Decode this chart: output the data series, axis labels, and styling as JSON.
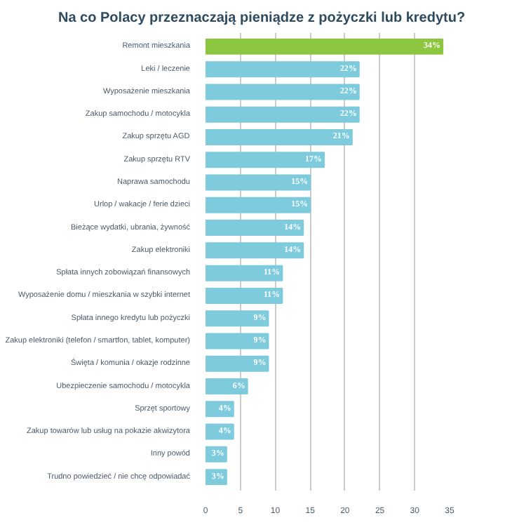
{
  "chart_data": {
    "type": "bar",
    "orientation": "horizontal",
    "title": "Na co Polacy przeznaczają pieniądze z pożyczki lub kredytu?",
    "categories": [
      "Remont mieszkania",
      "Leki / leczenie",
      "Wyposażenie mieszkania",
      "Zakup samochodu / motocykla",
      "Zakup sprzętu AGD",
      "Zakup sprzętu RTV",
      "Naprawa samochodu",
      "Urlop / wakacje / ferie dzieci",
      "Bieżące wydatki, ubrania, żywność",
      "Zakup elektroniki",
      "Spłata innych zobowiązań finansowych",
      "Wyposażenie domu / mieszkania w szybki internet",
      "Spłata innego kredytu lub pożyczki",
      "Zakup elektroniki (telefon / smartfon, tablet, komputer)",
      "Święta / komunia / okazje rodzinne",
      "Ubezpieczenie samochodu / motocykla",
      "Sprzęt sportowy",
      "Zakup towarów lub usług na pokazie akwizytora",
      "Inny powód",
      "Trudno powiedzieć / nie chcę odpowiadać"
    ],
    "values": [
      34,
      22,
      22,
      22,
      21,
      17,
      15,
      15,
      14,
      14,
      11,
      11,
      9,
      9,
      9,
      6,
      4,
      4,
      3,
      3
    ],
    "colors": [
      "#8cc63f",
      "#7dcbdc",
      "#7dcbdc",
      "#7dcbdc",
      "#7dcbdc",
      "#7dcbdc",
      "#7dcbdc",
      "#7dcbdc",
      "#7dcbdc",
      "#7dcbdc",
      "#7dcbdc",
      "#7dcbdc",
      "#7dcbdc",
      "#7dcbdc",
      "#7dcbdc",
      "#7dcbdc",
      "#7dcbdc",
      "#7dcbdc",
      "#7dcbdc",
      "#7dcbdc"
    ],
    "value_labels": [
      "34%",
      "22%",
      "22%",
      "22%",
      "21%",
      "17%",
      "15%",
      "15%",
      "14%",
      "14%",
      "11%",
      "11%",
      "9%",
      "9%",
      "9%",
      "6%",
      "4%",
      "4%",
      "3%",
      "3%"
    ],
    "xlim": [
      0,
      35
    ],
    "xticks": [
      0,
      5,
      10,
      15,
      20,
      25,
      30,
      35
    ],
    "grid": "x"
  }
}
